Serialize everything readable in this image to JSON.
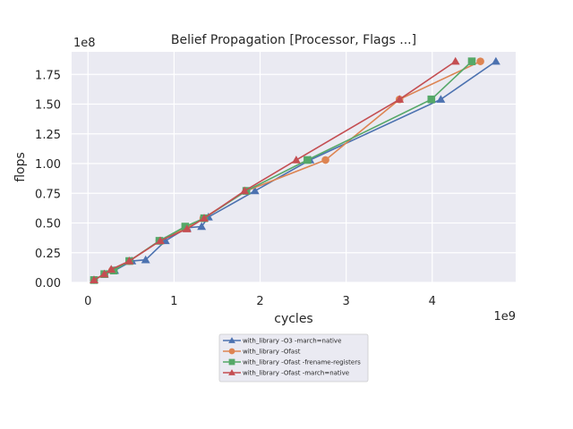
{
  "chart_data": {
    "type": "line",
    "title": "Belief Propagation [Processor, Flags ...]",
    "xlabel": "cycles",
    "ylabel": "flops",
    "x_exponent_label": "1e9",
    "y_exponent_label": "1e8",
    "x_scale": 1000000000,
    "y_scale": 100000000,
    "xlim": [
      -0.19,
      4.97
    ],
    "ylim": [
      0,
      1.94
    ],
    "x_ticks": [
      0,
      1,
      2,
      3,
      4
    ],
    "x_tick_labels": [
      "0",
      "1",
      "2",
      "3",
      "4"
    ],
    "y_ticks": [
      0,
      0.25,
      0.5,
      0.75,
      1.0,
      1.25,
      1.5,
      1.75
    ],
    "y_tick_labels": [
      "0.00",
      "0.25",
      "0.50",
      "0.75",
      "1.00",
      "1.25",
      "1.50",
      "1.75"
    ],
    "grid": true,
    "legend_placement": "below plot, center",
    "series": [
      {
        "name": "with_library -O3 -march=native",
        "color": "#4c72b0",
        "marker": "triangle",
        "x": [
          0.07,
          0.19,
          0.31,
          0.51,
          0.67,
          0.9,
          1.15,
          1.32,
          1.4,
          1.94,
          2.58,
          4.1,
          4.74
        ],
        "y": [
          0.02,
          0.07,
          0.1,
          0.18,
          0.19,
          0.35,
          0.46,
          0.47,
          0.55,
          0.77,
          1.03,
          1.54,
          1.86
        ]
      },
      {
        "name": "with_library -Ofast",
        "color": "#dd8452",
        "marker": "circle",
        "x": [
          0.07,
          0.19,
          0.28,
          0.48,
          0.83,
          1.14,
          1.34,
          1.84,
          2.76,
          3.62,
          4.56
        ],
        "y": [
          0.02,
          0.07,
          0.1,
          0.18,
          0.35,
          0.46,
          0.54,
          0.77,
          1.03,
          1.54,
          1.86
        ]
      },
      {
        "name": "with_library -Ofast -frename-registers",
        "color": "#55a868",
        "marker": "square",
        "x": [
          0.07,
          0.19,
          0.3,
          0.48,
          0.83,
          1.13,
          1.35,
          1.84,
          2.55,
          3.99,
          4.46
        ],
        "y": [
          0.02,
          0.07,
          0.1,
          0.18,
          0.35,
          0.47,
          0.54,
          0.77,
          1.03,
          1.54,
          1.86
        ]
      },
      {
        "name": "with_library -Ofast -march=native",
        "color": "#c44e52",
        "marker": "triangle",
        "x": [
          0.07,
          0.19,
          0.27,
          0.48,
          0.84,
          1.15,
          1.35,
          1.82,
          2.42,
          3.62,
          4.27
        ],
        "y": [
          0.02,
          0.07,
          0.11,
          0.18,
          0.35,
          0.45,
          0.54,
          0.77,
          1.03,
          1.54,
          1.86
        ]
      }
    ]
  }
}
